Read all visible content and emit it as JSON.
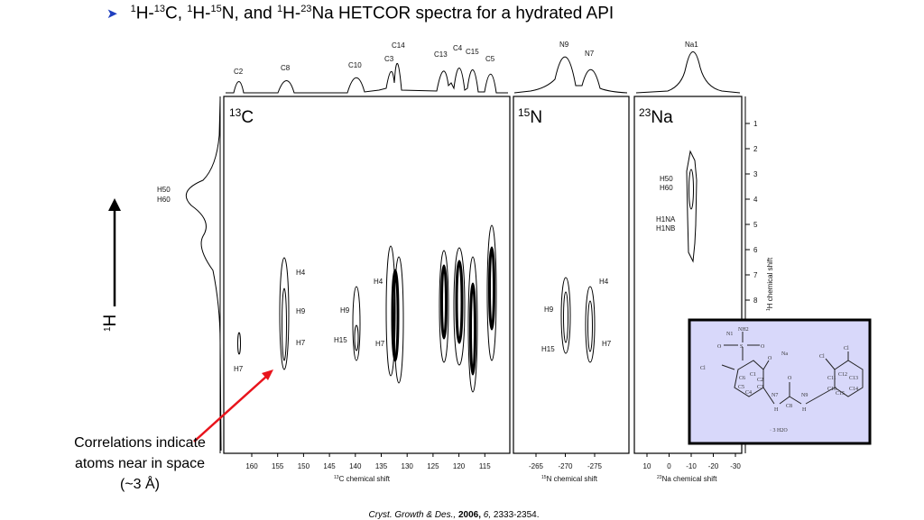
{
  "slide": {
    "title_parts": [
      "1",
      "H-",
      "13",
      "C, ",
      "1",
      "H-",
      "15",
      "N, and ",
      "1",
      "H-",
      "23",
      "Na HETCOR spectra for a hydrated API"
    ],
    "bullet_icon": "arrowhead-bullet",
    "bullet_color": "#1f3fbf",
    "note_lines": [
      "Correlations indicate",
      "atoms near in space",
      "(~3 Å)"
    ],
    "note_arrow_color": "#e8141c",
    "citation": {
      "journal": "Cryst. Growth & Des.,",
      "year": "2006,",
      "volume": "6,",
      "pages": "2333-2354."
    }
  },
  "figure": {
    "y_axis_left_label": {
      "main": "H",
      "sup": "1"
    },
    "panels": [
      {
        "label_sup": "13",
        "label": "C",
        "axis_label_sup": "13",
        "axis_label": "C chemical shift",
        "ticks": [
          "160",
          "155",
          "150",
          "145",
          "140",
          "135",
          "130",
          "125",
          "120",
          "115"
        ],
        "peaks": [
          "C2",
          "C8",
          "C10",
          "C3",
          "C14",
          "C13",
          "C4",
          "C15",
          "C5"
        ],
        "correlations": [
          "H4",
          "H9",
          "H7",
          "H9",
          "H15",
          "H4",
          "H7",
          "H7"
        ]
      },
      {
        "label_sup": "15",
        "label": "N",
        "axis_label_sup": "15",
        "axis_label": "N chemical shift",
        "ticks": [
          "-265",
          "-270",
          "-275"
        ],
        "peaks": [
          "N9",
          "N7"
        ],
        "correlations": [
          "H4",
          "H9",
          "H15",
          "H7"
        ]
      },
      {
        "label_sup": "23",
        "label": "Na",
        "axis_label_sup": "23",
        "axis_label": "Na chemical shift",
        "ticks": [
          "10",
          "0",
          "-10",
          "-20",
          "-30"
        ],
        "peaks": [
          "Na1"
        ],
        "correlations": [
          "H50",
          "H60",
          "H1NA",
          "H1NB"
        ]
      }
    ],
    "h_projection_labels": [
      "H50",
      "H60"
    ],
    "h_axis": {
      "label_sup": "1",
      "label": "H chemical shift",
      "ticks": [
        "1",
        "2",
        "3",
        "4",
        "5",
        "6",
        "7",
        "8"
      ]
    },
    "molecule": {
      "background": "#d8d8fa",
      "labels": [
        "NH2",
        "N1",
        "O",
        "S",
        "O",
        "Na",
        "O",
        "Cl",
        "C1",
        "C6",
        "C2",
        "C5",
        "C3",
        "C4",
        "N7",
        "H",
        "C8",
        "O",
        "N9",
        "H",
        "Cl",
        "Cl",
        "C12",
        "C11",
        "C13",
        "C10",
        "C14",
        "C15",
        "· 3 H2O"
      ]
    }
  }
}
